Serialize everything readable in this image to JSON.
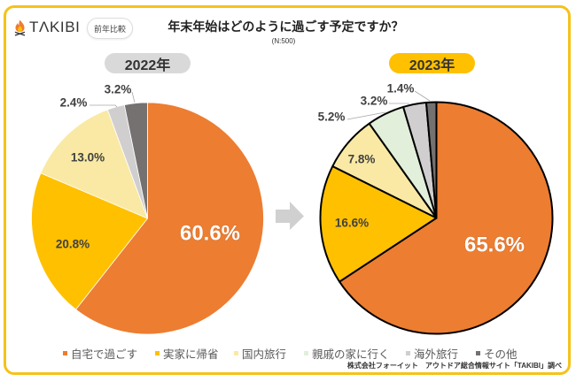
{
  "header": {
    "brand": "TΛKIBI",
    "badge": "前年比較",
    "title": "年末年始はどのように過ごす予定ですか？",
    "sample_size": "(N:500)"
  },
  "colors": {
    "frame": "#F5C21B",
    "badge_2022": "#D9D9D9",
    "badge_2023": "#FFC000",
    "arrow": "#D0D0D0"
  },
  "icons": {
    "logo": "campfire-icon",
    "transition": "right-arrow-icon"
  },
  "legend": [
    {
      "label": "自宅で過ごす",
      "color": "#ED7D31"
    },
    {
      "label": "実家に帰省",
      "color": "#FFC000"
    },
    {
      "label": "国内旅行",
      "color": "#F9E9A4"
    },
    {
      "label": "親戚の家に行く",
      "color": "#E2EFDA"
    },
    {
      "label": "海外旅行",
      "color": "#D0CECE"
    },
    {
      "label": "その他",
      "color": "#767171"
    }
  ],
  "credit": "株式会社フォーイット　アウトドア総合情報サイト「TAKIBI」調べ",
  "chart_data": [
    {
      "type": "pie",
      "title": "2022年",
      "unit": "%",
      "start": "12 o'clock",
      "direction": "clockwise",
      "categories": [
        "自宅で過ごす",
        "実家に帰省",
        "国内旅行",
        "海外旅行",
        "その他"
      ],
      "values": [
        60.6,
        20.8,
        13.0,
        2.4,
        3.2
      ],
      "data_labels": [
        "60.6%",
        "20.8%",
        "13.0%",
        "2.4%",
        "3.2%"
      ]
    },
    {
      "type": "pie",
      "title": "2023年",
      "unit": "%",
      "start": "12 o'clock",
      "direction": "clockwise",
      "categories": [
        "自宅で過ごす",
        "実家に帰省",
        "国内旅行",
        "親戚の家に行く",
        "海外旅行",
        "その他"
      ],
      "values": [
        65.6,
        16.6,
        7.8,
        5.2,
        3.2,
        1.4
      ],
      "data_labels": [
        "65.6%",
        "16.6%",
        "7.8%",
        "5.2%",
        "3.2%",
        "1.4%"
      ]
    }
  ]
}
